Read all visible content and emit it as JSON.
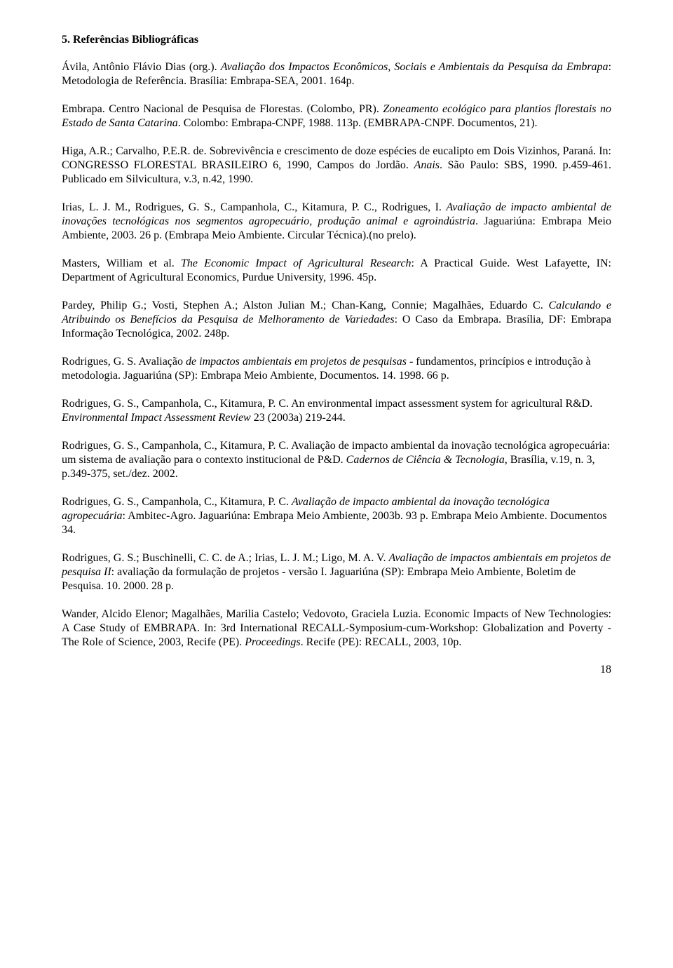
{
  "section_title": "5. Referências Bibliográficas",
  "refs": {
    "r1_a": "Ávila, Antônio Flávio Dias (org.). ",
    "r1_b": "Avaliação dos Impactos Econômicos, Sociais e Ambientais da Pesquisa da Embrapa",
    "r1_c": ": Metodologia de Referência. Brasília: Embrapa-SEA, 2001. 164p.",
    "r2_a": "Embrapa. Centro Nacional de Pesquisa de Florestas. (Colombo, PR). ",
    "r2_b": "Zoneamento ecológico para plantios florestais no Estado de Santa Catarina",
    "r2_c": ". Colombo: Embrapa-CNPF, 1988. 113p. (EMBRAPA-CNPF. Documentos, 21).",
    "r3_a": "Higa, A.R.; Carvalho, P.E.R. de. Sobrevivência e crescimento de doze espécies de eucalipto em Dois Vizinhos, Paraná. In: CONGRESSO FLORESTAL BRASILEIRO 6, 1990, Campos do Jordão. ",
    "r3_b": "Anais",
    "r3_c": ". São Paulo: SBS, 1990. p.459-461. Publicado em Silvicultura, v.3, n.42, 1990.",
    "r4_a": "Irias, L. J. M., Rodrigues, G. S., Campanhola, C., Kitamura, P. C., Rodrigues, I. ",
    "r4_b": "Avaliação de impacto ambiental de inovações tecnológicas nos segmentos agropecuário, produção animal e agroindústria",
    "r4_c": ". Jaguariúna: Embrapa Meio Ambiente, 2003. 26 p. (Embrapa Meio Ambiente. Circular Técnica).(no prelo).",
    "r5_a": "Masters, William et al. ",
    "r5_b": "The Economic Impact of Agricultural Research",
    "r5_c": ": A Practical Guide. West Lafayette, IN: Department of Agricultural Economics, Purdue University, 1996. 45p.",
    "r6_a": "Pardey, Philip G.; Vosti, Stephen A.; Alston Julian M.; Chan-Kang, Connie; Magalhães, Eduardo C. ",
    "r6_b": "Calculando e Atribuindo os Benefícios da Pesquisa de Melhoramento de Variedades",
    "r6_c": ": O Caso da Embrapa. Brasília, DF: Embrapa Informação Tecnológica, 2002. 248p.",
    "r7_a": "Rodrigues, G. S. Avaliação ",
    "r7_b": "de impactos ambientais em projetos de pesquisas",
    "r7_c": " - fundamentos, princípios e introdução à metodologia. Jaguariúna (SP): Embrapa Meio Ambiente, Documentos. 14. 1998. 66 p.",
    "r8_a": "Rodrigues, G. S., Campanhola, C., Kitamura, P. C. An environmental impact assessment system for agricultural R&D. ",
    "r8_b": "Environmental Impact Assessment Review",
    "r8_c": "  23 (2003a) 219-244.",
    "r9_a": "Rodrigues, G. S., Campanhola, C., Kitamura, P. C. Avaliação de impacto ambiental da inovação tecnológica agropecuária: um sistema de avaliação para o contexto institucional de P&D. ",
    "r9_b": "Cadernos de Ciência & Tecnologia",
    "r9_c": ", Brasília, v.19, n. 3, p.349-375, set./dez. 2002.",
    "r10_a": "Rodrigues, G. S., Campanhola, C., Kitamura, P. C. ",
    "r10_b": "Avaliação de impacto ambiental da inovação tecnológica agropecuária",
    "r10_c": ": Ambitec-Agro. Jaguariúna: Embrapa Meio Ambiente, 2003b. 93 p. Embrapa Meio Ambiente. Documentos 34.",
    "r11_a": "Rodrigues, G. S.; Buschinelli, C. C. de A.; Irias, L. J. M.;  Ligo, M. A. V.  ",
    "r11_b": "Avaliação de impactos ambientais em projetos de pesquisa II",
    "r11_c": ": avaliação da formulação de projetos - versão I. Jaguariúna (SP): Embrapa Meio Ambiente, Boletim de Pesquisa. 10. 2000. 28 p.",
    "r12_a": "Wander, Alcido Elenor; Magalhães, Marilia Castelo; Vedovoto, Graciela Luzia. Economic Impacts of New Technologies: A Case Study of EMBRAPA. In: 3rd International RECALL-Symposium-cum-Workshop: Globalization and Poverty - The Role of Science, 2003, Recife (PE). ",
    "r12_b": "Proceedings",
    "r12_c": ". Recife (PE): RECALL, 2003, 10p."
  },
  "page_number": "18"
}
